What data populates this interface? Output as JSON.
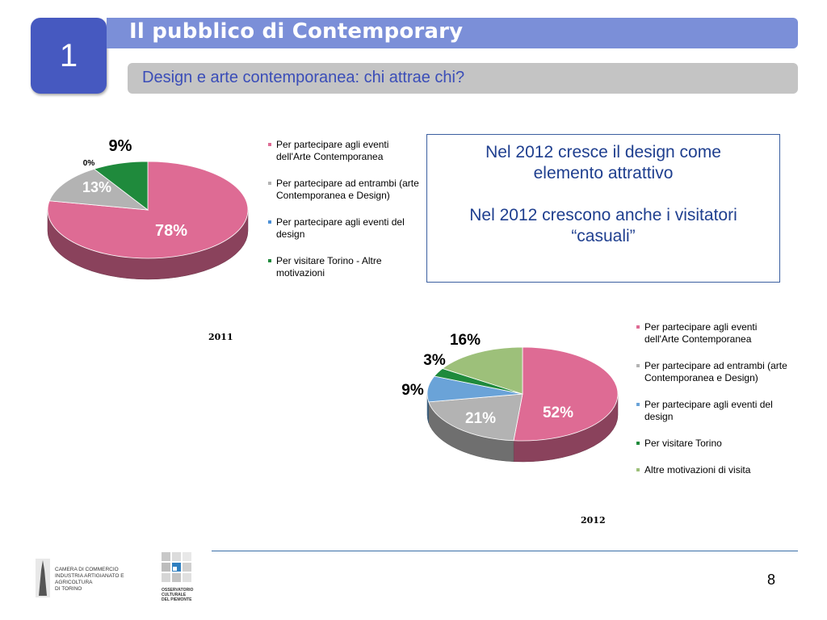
{
  "slide": {
    "number": "1",
    "title": "Il pubblico di Contemporary",
    "subtitle": "Design e arte contemporanea: chi attrae chi?",
    "page_number": "8"
  },
  "info_box": {
    "line1": "Nel 2012 cresce il design come elemento attrattivo",
    "line2": "Nel 2012 crescono anche i visitatori “casuali”"
  },
  "footer": {
    "logo1_text": [
      "CAMERA DI COMMERCIO",
      "INDUSTRIA ARTIGIANATO E AGRICOLTURA",
      "DI TORINO"
    ],
    "logo2_text": [
      "OSSERVATORIO",
      "CULTURALE",
      "DEL PIEMONTE"
    ]
  },
  "chart_data": [
    {
      "type": "pie",
      "title": "2011",
      "categories": [
        "Per partecipare agli eventi dell'Arte Contemporanea",
        "Per partecipare ad entrambi (arte Contemporanea e Design)",
        "Per partecipare agli eventi del design",
        "Per visitare Torino - Altre motivazioni"
      ],
      "values": [
        78,
        13,
        0,
        9
      ],
      "labels": [
        "78%",
        "13%",
        "0%",
        "9%"
      ],
      "colors": [
        "#de6b94",
        "#b3b3b3",
        "#4a8fd6",
        "#1f8a3c"
      ],
      "legend": "right"
    },
    {
      "type": "pie",
      "title": "2012",
      "categories": [
        "Per partecipare agli eventi dell'Arte Contemporanea",
        "Per partecipare ad entrambi (arte Contemporanea e Design)",
        "Per partecipare agli eventi del design",
        "Per visitare Torino",
        "Altre motivazioni di visita"
      ],
      "values": [
        52,
        21,
        9,
        3,
        16
      ],
      "labels": [
        "52%",
        "21%",
        "9%",
        "3%",
        "16%"
      ],
      "colors": [
        "#de6b94",
        "#b3b3b3",
        "#6aa3d8",
        "#1f8a3c",
        "#9dc07a"
      ],
      "legend": "right"
    }
  ]
}
